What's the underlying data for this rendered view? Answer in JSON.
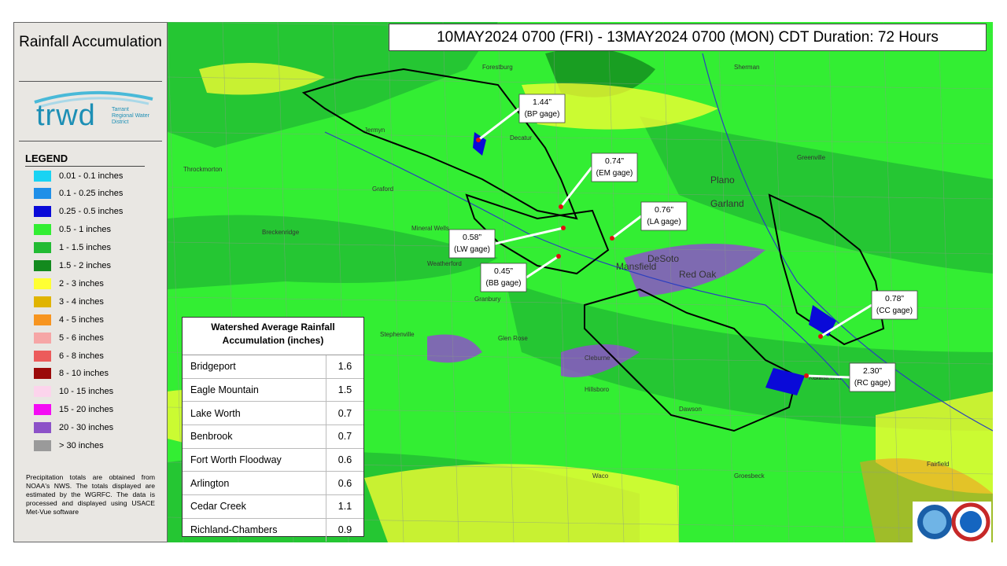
{
  "sidebar": {
    "title": "Rainfall Accumulation",
    "logo": {
      "name": "trwd",
      "org": "Tarrant Regional Water District"
    },
    "legend": {
      "title": "LEGEND",
      "items": [
        {
          "label": "0.01 - 0.1 inches",
          "color": "#19d3f3"
        },
        {
          "label": "0.1 - 0.25 inches",
          "color": "#1f8fe8"
        },
        {
          "label": "0.25 - 0.5 inches",
          "color": "#0a0ad8"
        },
        {
          "label": "0.5 - 1 inches",
          "color": "#33ee33"
        },
        {
          "label": "1 - 1.5 inches",
          "color": "#22bb33"
        },
        {
          "label": "1.5 - 2 inches",
          "color": "#138a1e"
        },
        {
          "label": "2 - 3 inches",
          "color": "#ffff33"
        },
        {
          "label": "3 - 4 inches",
          "color": "#e0b400"
        },
        {
          "label": "4 - 5 inches",
          "color": "#f79520"
        },
        {
          "label": "5 - 6 inches",
          "color": "#f6a6a6"
        },
        {
          "label": "6 - 8 inches",
          "color": "#ec5b5b"
        },
        {
          "label": "8 - 10 inches",
          "color": "#9b0a0a"
        },
        {
          "label": "10 - 15 inches",
          "color": "#fcd4ec"
        },
        {
          "label": "15 - 20 inches",
          "color": "#f40cf4"
        },
        {
          "label": "20 - 30 inches",
          "color": "#8c52c8"
        },
        {
          "label": "> 30 inches",
          "color": "#9a9a9a"
        }
      ]
    },
    "note": "Precipitation totals are obtained from NOAA's NWS. The totals displayed are estimated by the WGRFC. The data is processed and displayed using USACE Met-Vue software"
  },
  "header": {
    "title": "10MAY2024 0700 (FRI) - 13MAY2024 0700 (MON) CDT Duration: 72 Hours"
  },
  "table": {
    "title": "Watershed Average Rainfall Accumulation (inches)",
    "rows": [
      [
        "Bridgeport",
        1.6
      ],
      [
        "Eagle Mountain",
        1.5
      ],
      [
        "Lake Worth",
        0.7
      ],
      [
        "Benbrook",
        0.7
      ],
      [
        "Fort Worth Floodway",
        0.6
      ],
      [
        "Arlington",
        0.6
      ],
      [
        "Cedar Creek",
        1.1
      ],
      [
        "Richland-Chambers",
        0.9
      ]
    ]
  },
  "gages": [
    {
      "value": "1.44”",
      "name": "(BP gage)"
    },
    {
      "value": "0.74”",
      "name": "(EM gage)"
    },
    {
      "value": "0.76”",
      "name": "(LA gage)"
    },
    {
      "value": "0.58”",
      "name": "(LW gage)"
    },
    {
      "value": "0.45”",
      "name": "(BB gage)"
    },
    {
      "value": "0.78”",
      "name": "(CC gage)"
    },
    {
      "value": "2.30”",
      "name": "(RC gage)"
    }
  ],
  "places": [
    "Forestburg",
    "Decatur",
    "Jermyn",
    "Graford",
    "Mineral Wells",
    "Weatherford",
    "Granbury",
    "Stephenville",
    "Glen Rose",
    "Cleburne",
    "Hillsboro",
    "Waco",
    "Mansfield",
    "DeSoto",
    "Red Oak",
    "Plano",
    "Garland",
    "Kerens",
    "Dawson",
    "Fairfield",
    "Sherman",
    "Greenville",
    "Corsicana",
    "Groesbeck",
    "Breckenridge",
    "Throckmorton"
  ]
}
